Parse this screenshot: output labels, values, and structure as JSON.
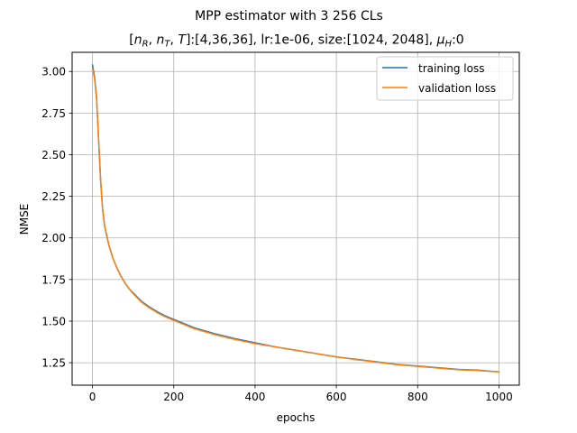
{
  "chart_data": {
    "type": "line",
    "title": "MPP estimator with 3 256 CLs",
    "subtitle": "[n_R, n_T, T]:[4,36,36], lr:1e-06, size:[1024, 2048], μ_H:0",
    "subtitle_parts": {
      "open": "[",
      "nR_base": "n",
      "nR_sub": "R",
      "sep1": ", ",
      "nT_base": "n",
      "nT_sub": "T",
      "sep2": ", ",
      "T_base": "T",
      "rest": "]:[4,36,36], lr:1e-06, size:[1024, 2048], ",
      "mu_base": "μ",
      "mu_sub": "H",
      "mu_value": ":0"
    },
    "xlabel": "epochs",
    "ylabel": "NMSE",
    "xlim": [
      -50,
      1050
    ],
    "ylim": [
      1.115,
      3.115
    ],
    "xticks": [
      0,
      200,
      400,
      600,
      800,
      1000
    ],
    "xtick_labels": [
      "0",
      "200",
      "400",
      "600",
      "800",
      "1000"
    ],
    "yticks": [
      1.25,
      1.5,
      1.75,
      2.0,
      2.25,
      2.5,
      2.75,
      3.0
    ],
    "ytick_labels": [
      "1.25",
      "1.50",
      "1.75",
      "2.00",
      "2.25",
      "2.50",
      "2.75",
      "3.00"
    ],
    "grid": true,
    "legend_position": "top-right",
    "series": [
      {
        "name": "training loss",
        "color": "#1f77b4",
        "x": [
          0,
          5,
          10,
          15,
          20,
          25,
          30,
          40,
          50,
          60,
          70,
          80,
          90,
          100,
          120,
          140,
          160,
          180,
          200,
          250,
          300,
          350,
          400,
          450,
          500,
          550,
          600,
          650,
          700,
          750,
          800,
          850,
          900,
          950,
          1000
        ],
        "y": [
          3.04,
          2.97,
          2.85,
          2.6,
          2.35,
          2.17,
          2.07,
          1.96,
          1.88,
          1.82,
          1.77,
          1.73,
          1.695,
          1.67,
          1.62,
          1.585,
          1.555,
          1.53,
          1.51,
          1.46,
          1.425,
          1.395,
          1.37,
          1.345,
          1.325,
          1.305,
          1.285,
          1.27,
          1.255,
          1.24,
          1.23,
          1.22,
          1.21,
          1.205,
          1.195
        ]
      },
      {
        "name": "validation loss",
        "color": "#ff7f0e",
        "x": [
          0,
          5,
          10,
          15,
          20,
          25,
          30,
          40,
          50,
          60,
          70,
          80,
          90,
          100,
          120,
          140,
          160,
          180,
          200,
          250,
          300,
          350,
          400,
          450,
          500,
          550,
          600,
          650,
          700,
          750,
          800,
          850,
          900,
          950,
          1000
        ],
        "y": [
          3.02,
          2.96,
          2.84,
          2.59,
          2.35,
          2.17,
          2.07,
          1.96,
          1.88,
          1.82,
          1.77,
          1.73,
          1.695,
          1.665,
          1.615,
          1.58,
          1.55,
          1.525,
          1.505,
          1.455,
          1.42,
          1.39,
          1.365,
          1.345,
          1.325,
          1.305,
          1.285,
          1.268,
          1.253,
          1.238,
          1.228,
          1.218,
          1.208,
          1.203,
          1.195
        ]
      }
    ]
  }
}
